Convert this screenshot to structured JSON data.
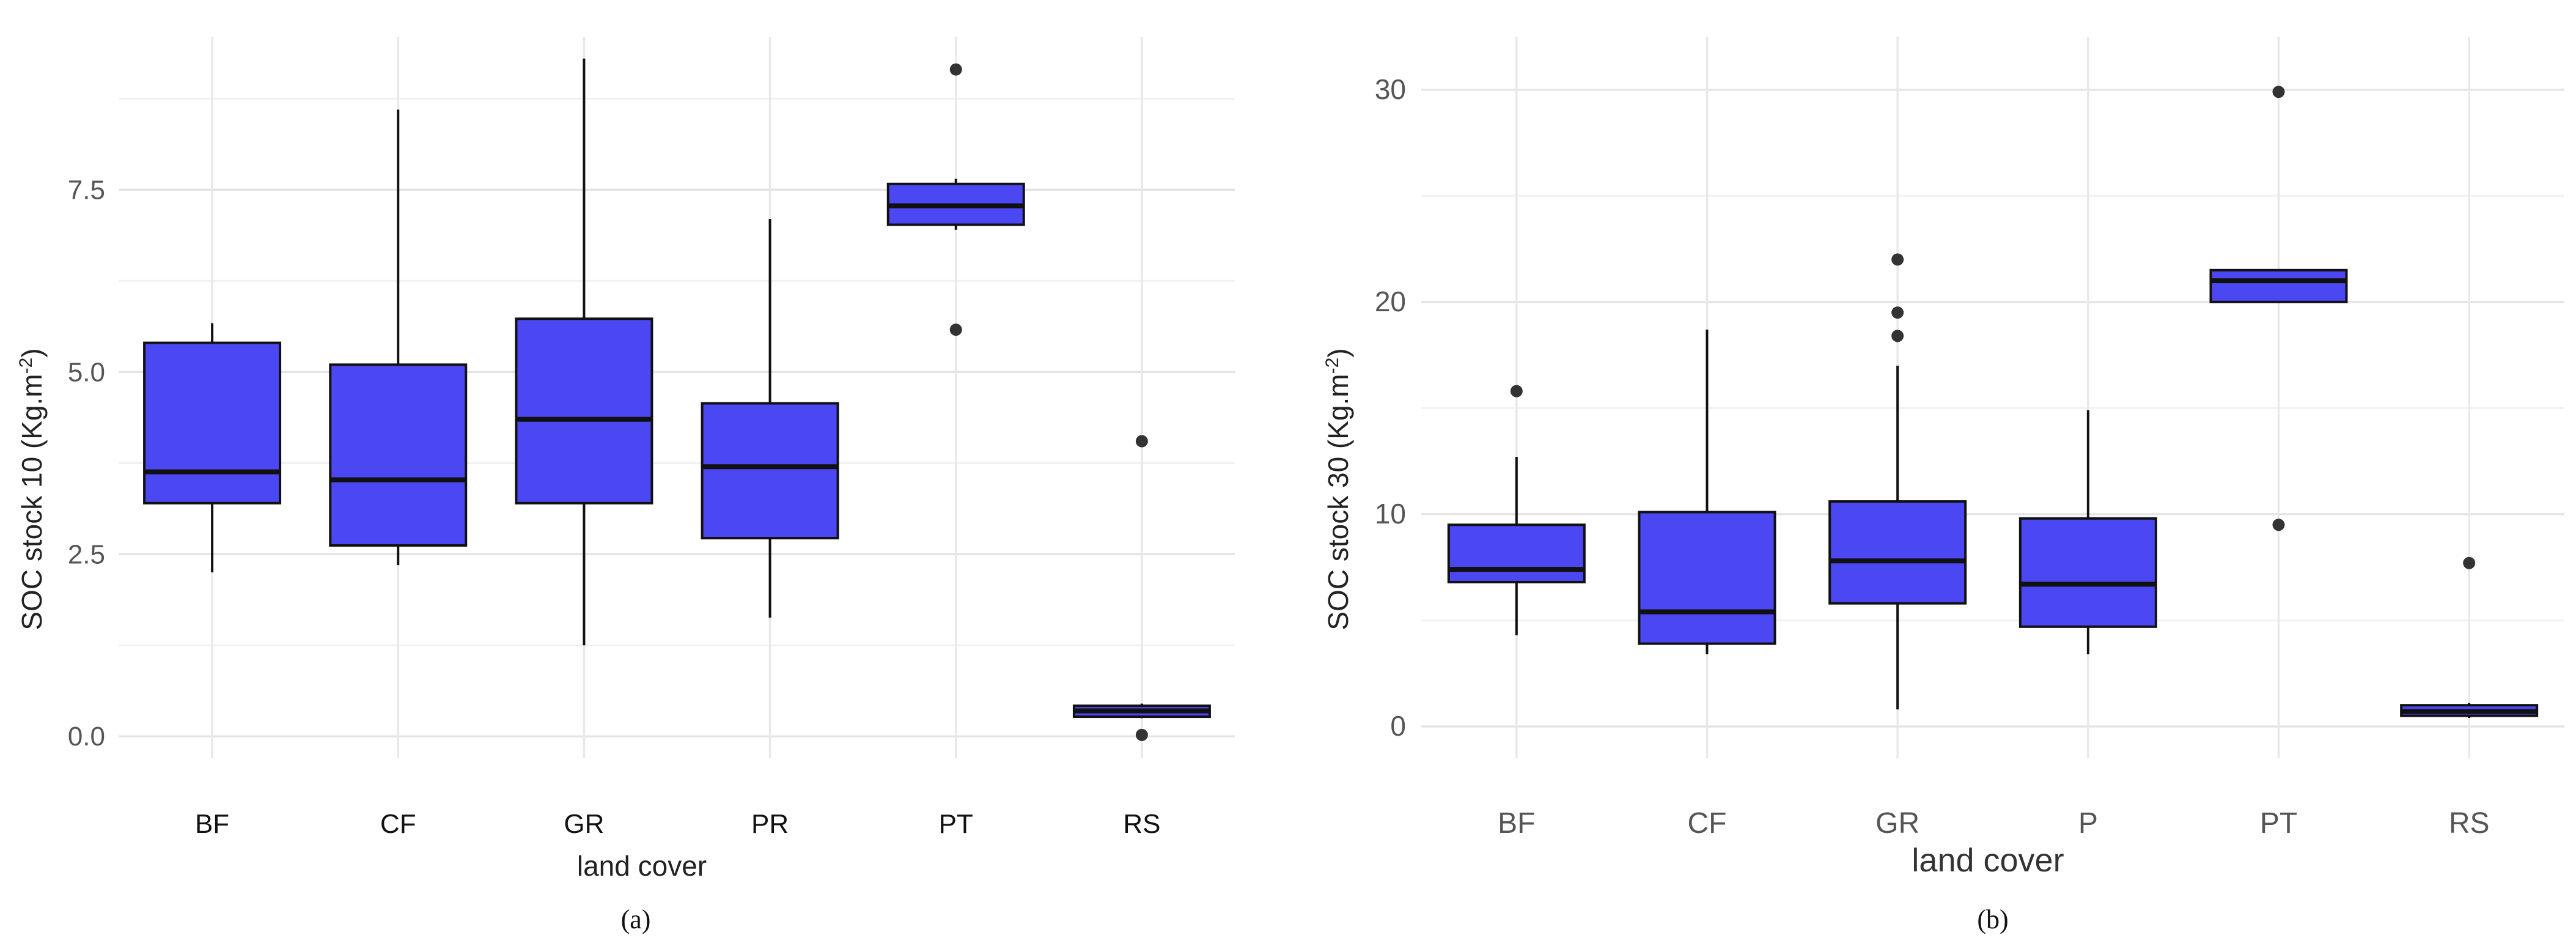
{
  "chart_data": [
    {
      "type": "box",
      "panel_label": "(a)",
      "xlabel": "land cover",
      "ylabel": "SOC stock 10 (Kg.m",
      "ylabel_sup": "-2",
      "ylabel_close": ")",
      "ylim": [
        -0.3,
        9.6
      ],
      "yticks": [
        0.0,
        2.5,
        5.0,
        7.5
      ],
      "ytick_labels": [
        "0.0",
        "2.5",
        "5.0",
        "7.5"
      ],
      "categories": [
        "BF",
        "CF",
        "GR",
        "PR",
        "PT",
        "RS"
      ],
      "boxes": [
        {
          "category": "BF",
          "whisker_low": 2.25,
          "q1": 3.2,
          "median": 3.63,
          "q3": 5.4,
          "whisker_high": 5.67,
          "outliers": []
        },
        {
          "category": "CF",
          "whisker_low": 2.35,
          "q1": 2.62,
          "median": 3.52,
          "q3": 5.1,
          "whisker_high": 8.6,
          "outliers": []
        },
        {
          "category": "GR",
          "whisker_low": 1.25,
          "q1": 3.2,
          "median": 4.35,
          "q3": 5.73,
          "whisker_high": 9.3,
          "outliers": []
        },
        {
          "category": "PR",
          "whisker_low": 1.63,
          "q1": 2.72,
          "median": 3.7,
          "q3": 4.57,
          "whisker_high": 7.1,
          "outliers": []
        },
        {
          "category": "PT",
          "whisker_low": 6.95,
          "q1": 7.02,
          "median": 7.28,
          "q3": 7.58,
          "whisker_high": 7.65,
          "outliers": [
            9.15,
            5.58
          ]
        },
        {
          "category": "RS",
          "whisker_low": 0.25,
          "q1": 0.27,
          "median": 0.35,
          "q3": 0.42,
          "whisker_high": 0.45,
          "outliers": [
            4.05,
            0.02
          ]
        }
      ],
      "fill_color": "#4b47f2",
      "grid": true
    },
    {
      "type": "box",
      "panel_label": "(b)",
      "xlabel": "land cover",
      "ylabel": "SOC stock 30 (Kg.m",
      "ylabel_sup": "-2",
      "ylabel_close": ")",
      "ylim": [
        -1.5,
        32.5
      ],
      "yticks": [
        0,
        10,
        20,
        30
      ],
      "ytick_labels": [
        "0",
        "10",
        "20",
        "30"
      ],
      "categories": [
        "BF",
        "CF",
        "GR",
        "P",
        "PT",
        "RS"
      ],
      "boxes": [
        {
          "category": "BF",
          "whisker_low": 4.3,
          "q1": 6.8,
          "median": 7.4,
          "q3": 9.5,
          "whisker_high": 12.7,
          "outliers": [
            15.8
          ]
        },
        {
          "category": "CF",
          "whisker_low": 3.4,
          "q1": 3.9,
          "median": 5.4,
          "q3": 10.1,
          "whisker_high": 18.7,
          "outliers": []
        },
        {
          "category": "GR",
          "whisker_low": 0.8,
          "q1": 5.8,
          "median": 7.8,
          "q3": 10.6,
          "whisker_high": 17.0,
          "outliers": [
            22.0,
            19.5,
            18.4
          ]
        },
        {
          "category": "P",
          "whisker_low": 3.4,
          "q1": 4.7,
          "median": 6.7,
          "q3": 9.8,
          "whisker_high": 14.9,
          "outliers": []
        },
        {
          "category": "PT",
          "whisker_low": 20.0,
          "q1": 20.0,
          "median": 21.0,
          "q3": 21.5,
          "whisker_high": 21.5,
          "outliers": [
            29.9,
            9.5
          ]
        },
        {
          "category": "RS",
          "whisker_low": 0.4,
          "q1": 0.5,
          "median": 0.7,
          "q3": 1.0,
          "whisker_high": 1.1,
          "outliers": [
            7.7
          ]
        }
      ],
      "fill_color": "#4b47f2",
      "grid": true
    }
  ]
}
